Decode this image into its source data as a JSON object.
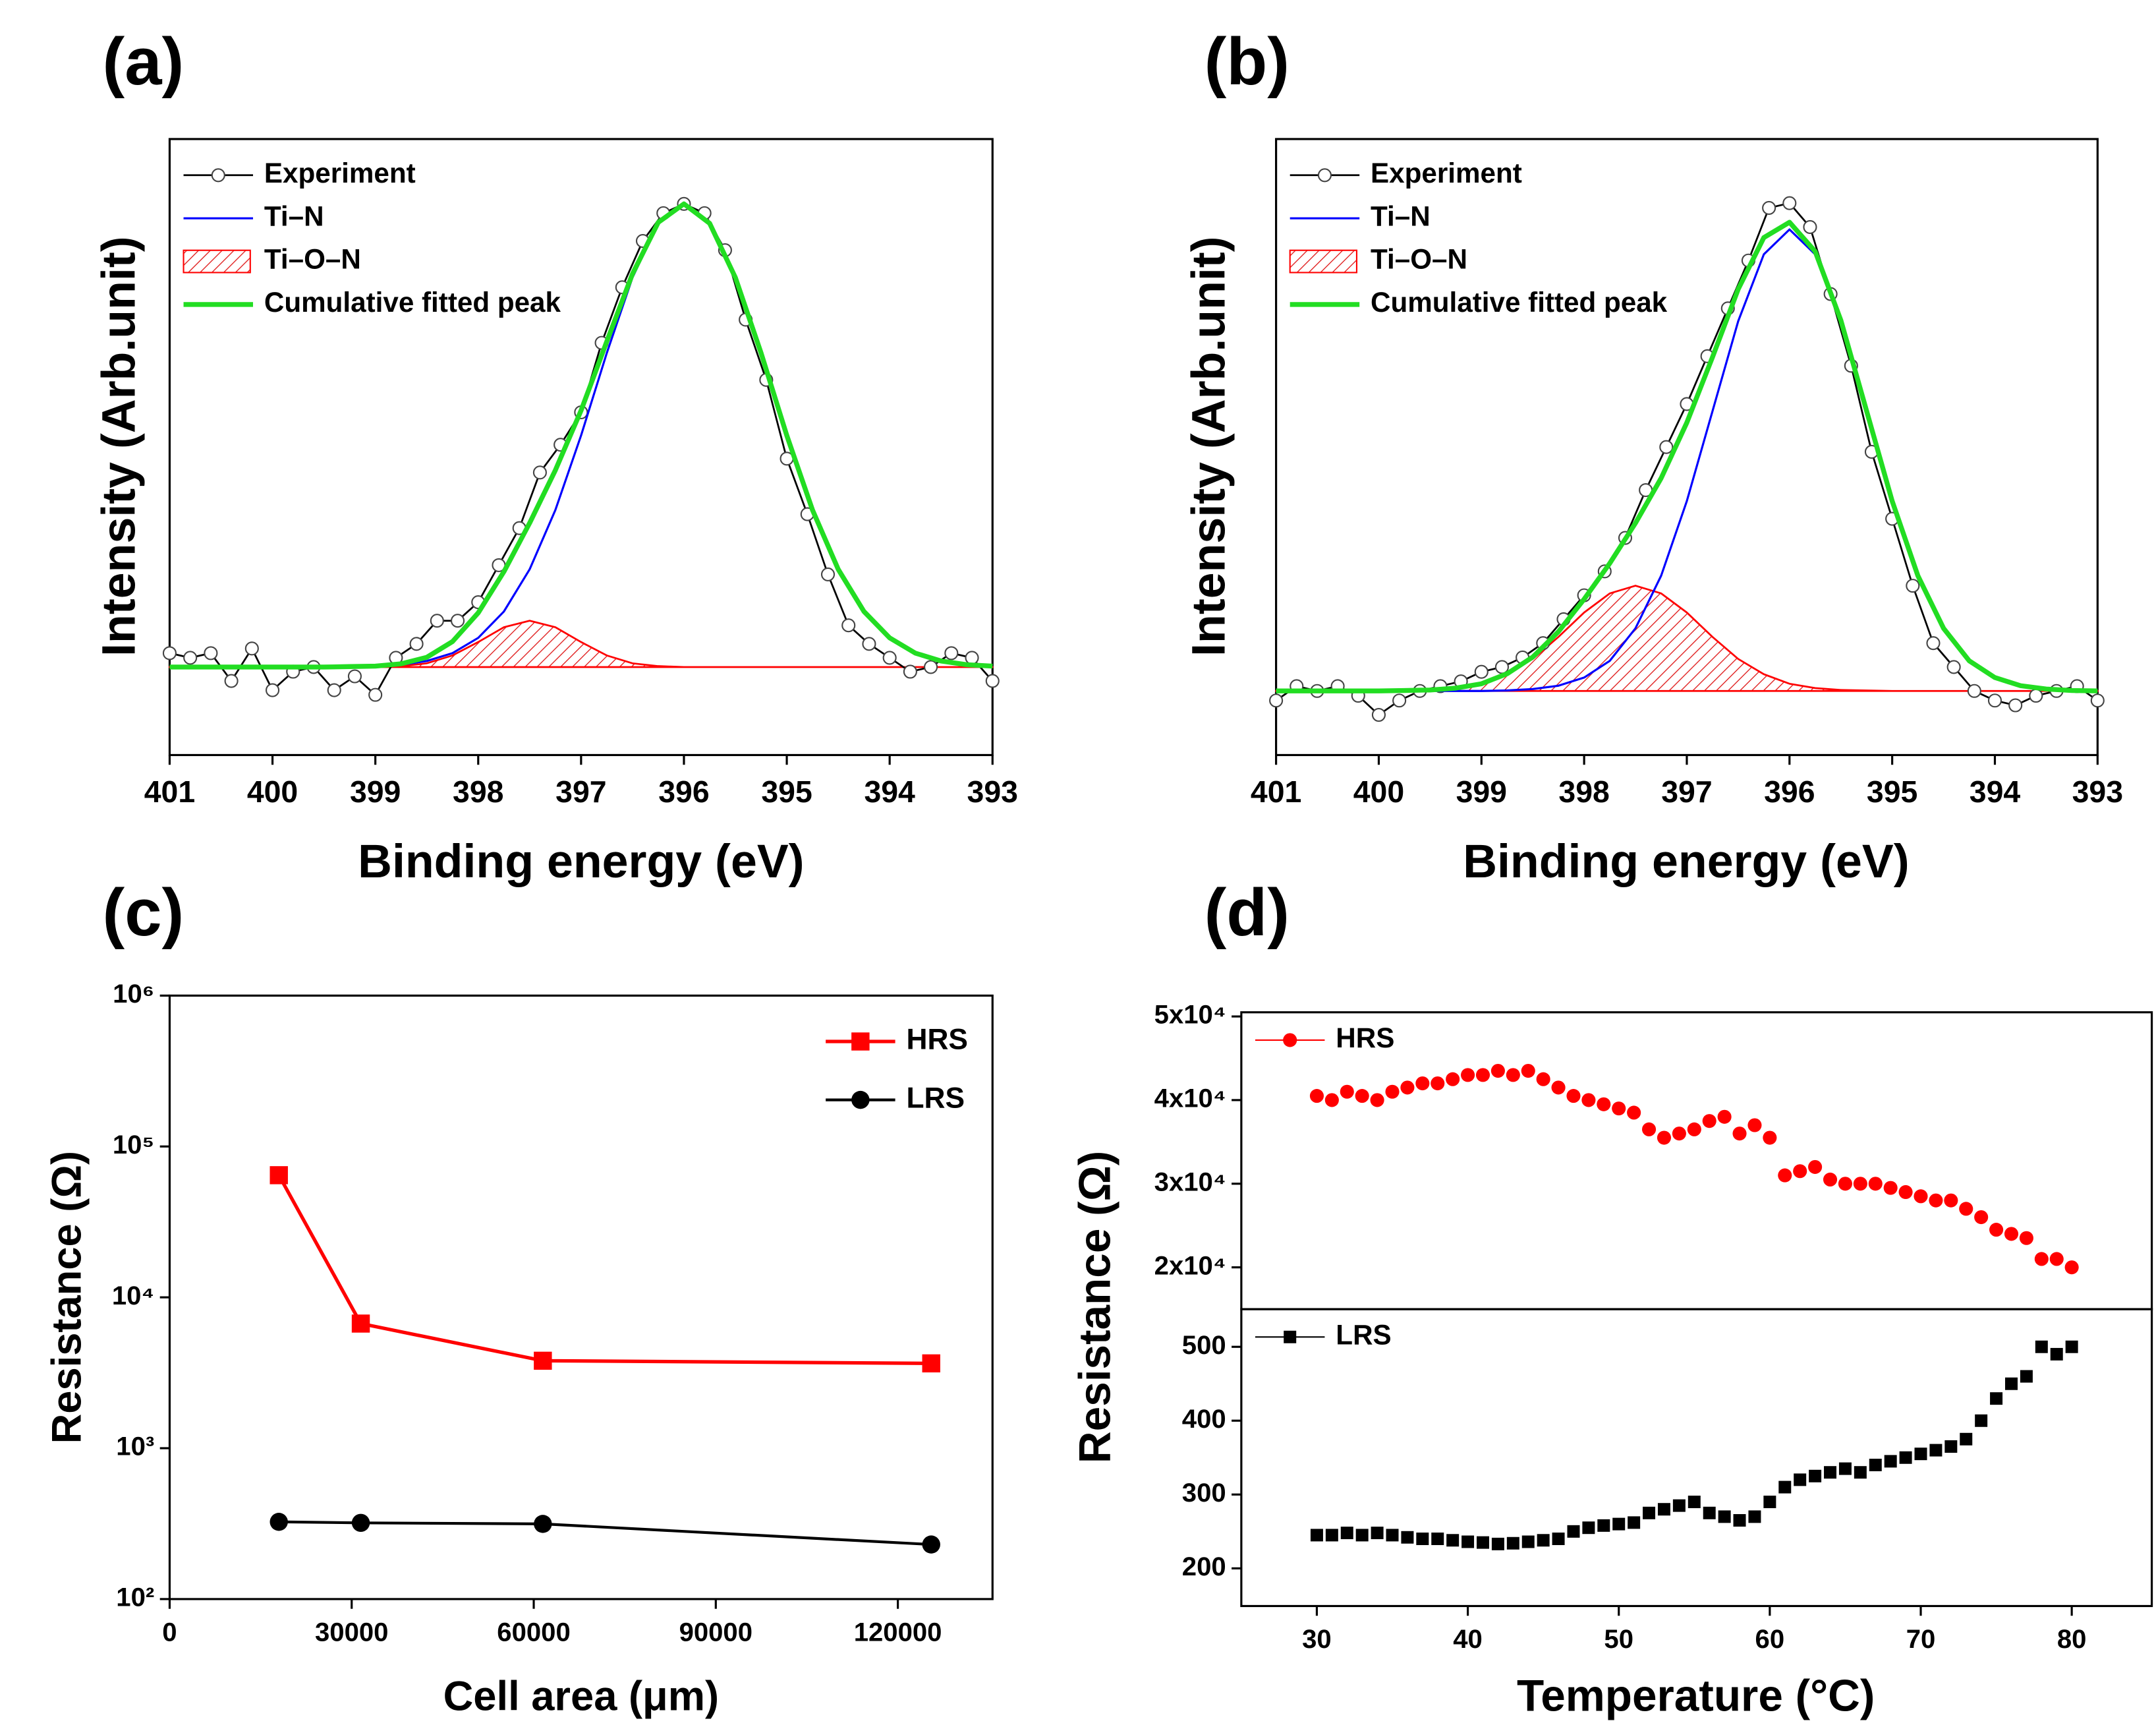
{
  "chart_data": [
    {
      "type": "line",
      "panel_label": "(a)",
      "xlabel": "Binding energy (eV)",
      "ylabel": "Intensity (Arb.unit)",
      "xlim": [
        401,
        393
      ],
      "xticks": [
        401,
        400,
        399,
        398,
        397,
        396,
        395,
        394,
        393
      ],
      "ylim": [
        -0.19,
        1.14
      ],
      "legend": "upper left",
      "x": [
        401,
        400.75,
        400.5,
        400.25,
        400,
        399.75,
        399.5,
        399.25,
        399,
        398.75,
        398.5,
        398.25,
        398,
        397.75,
        397.5,
        397.25,
        397,
        396.75,
        396.5,
        396.25,
        396,
        395.75,
        395.5,
        395.25,
        395,
        394.75,
        394.5,
        394.25,
        394,
        393.75,
        393.5,
        393.25,
        393
      ],
      "series": [
        {
          "name": "Experiment",
          "color": "#000000",
          "width": 1.3,
          "marker": "open-circle",
          "marker_size": 4.5,
          "x": [
            401,
            400.8,
            400.6,
            400.4,
            400.2,
            400,
            399.8,
            399.6,
            399.4,
            399.2,
            399,
            398.8,
            398.6,
            398.4,
            398.2,
            398,
            397.8,
            397.6,
            397.4,
            397.2,
            397,
            396.8,
            396.6,
            396.4,
            396.2,
            396,
            395.8,
            395.6,
            395.4,
            395.2,
            395,
            394.8,
            394.6,
            394.4,
            394.2,
            394,
            393.8,
            393.6,
            393.4,
            393.2,
            393
          ],
          "values": [
            0.03,
            0.02,
            0.03,
            -0.03,
            0.04,
            -0.05,
            -0.01,
            0,
            -0.05,
            -0.02,
            -0.06,
            0.02,
            0.05,
            0.1,
            0.1,
            0.14,
            0.22,
            0.3,
            0.42,
            0.48,
            0.55,
            0.7,
            0.82,
            0.92,
            0.98,
            1,
            0.98,
            0.9,
            0.75,
            0.62,
            0.45,
            0.33,
            0.2,
            0.09,
            0.05,
            0.02,
            -0.01,
            0,
            0.03,
            0.02,
            -0.03
          ]
        },
        {
          "name": "Ti–N",
          "color": "#0000ff",
          "width": 1.5,
          "values": [
            0,
            0,
            0,
            0,
            0,
            0,
            0,
            0.001,
            0.002,
            0.005,
            0.013,
            0.03,
            0.063,
            0.12,
            0.211,
            0.339,
            0.5,
            0.678,
            0.841,
            0.958,
            1,
            0.958,
            0.841,
            0.678,
            0.5,
            0.339,
            0.211,
            0.12,
            0.063,
            0.03,
            0.013,
            0.005,
            0.002
          ]
        },
        {
          "name": "Ti–O–N",
          "color": "#ff0000",
          "width": 1.3,
          "fill": "hatch",
          "values": [
            0,
            0,
            0,
            0,
            0,
            0,
            0,
            0,
            0,
            0.002,
            0.008,
            0.025,
            0.054,
            0.086,
            0.1,
            0.086,
            0.054,
            0.025,
            0.008,
            0.002,
            0,
            0,
            0,
            0,
            0,
            0,
            0,
            0,
            0,
            0,
            0,
            0,
            0
          ]
        },
        {
          "name": "Cumulative fitted peak",
          "color": "#22dd22",
          "width": 3.5,
          "values": [
            0,
            0,
            0,
            0,
            0,
            0,
            0,
            0.001,
            0.002,
            0.007,
            0.021,
            0.055,
            0.117,
            0.206,
            0.311,
            0.425,
            0.554,
            0.703,
            0.849,
            0.96,
            1,
            0.958,
            0.841,
            0.678,
            0.5,
            0.339,
            0.211,
            0.12,
            0.063,
            0.03,
            0.013,
            0.005,
            0.002
          ]
        }
      ]
    },
    {
      "type": "line",
      "panel_label": "(b)",
      "xlabel": "Binding energy (eV)",
      "ylabel": "Intensity (Arb.unit)",
      "xlim": [
        401,
        393
      ],
      "xticks": [
        401,
        400,
        399,
        398,
        397,
        396,
        395,
        394,
        393
      ],
      "ylim": [
        -0.134,
        1.154
      ],
      "legend": "upper left",
      "x": [
        401,
        400.75,
        400.5,
        400.25,
        400,
        399.75,
        399.5,
        399.25,
        399,
        398.75,
        398.5,
        398.25,
        398,
        397.75,
        397.5,
        397.25,
        397,
        396.75,
        396.5,
        396.25,
        396,
        395.75,
        395.5,
        395.25,
        395,
        394.75,
        394.5,
        394.25,
        394,
        393.75,
        393.5,
        393.25,
        393
      ],
      "series": [
        {
          "name": "Experiment",
          "color": "#000000",
          "width": 1.3,
          "marker": "open-circle",
          "marker_size": 4.5,
          "x": [
            401,
            400.8,
            400.6,
            400.4,
            400.2,
            400,
            399.8,
            399.6,
            399.4,
            399.2,
            399,
            398.8,
            398.6,
            398.4,
            398.2,
            398,
            397.8,
            397.6,
            397.4,
            397.2,
            397,
            396.8,
            396.6,
            396.4,
            396.2,
            396,
            395.8,
            395.6,
            395.4,
            395.2,
            395,
            394.8,
            394.6,
            394.4,
            394.2,
            394,
            393.8,
            393.6,
            393.4,
            393.2,
            393
          ],
          "values": [
            -0.02,
            0.01,
            0,
            0.01,
            -0.01,
            -0.05,
            -0.02,
            0,
            0.01,
            0.02,
            0.04,
            0.05,
            0.07,
            0.1,
            0.15,
            0.2,
            0.25,
            0.32,
            0.42,
            0.51,
            0.6,
            0.7,
            0.8,
            0.9,
            1.01,
            1.02,
            0.97,
            0.83,
            0.68,
            0.5,
            0.36,
            0.22,
            0.1,
            0.05,
            0,
            -0.02,
            -0.03,
            -0.01,
            0,
            0.01,
            -0.02
          ]
        },
        {
          "name": "Ti–N",
          "color": "#0000ff",
          "width": 1.5,
          "values": [
            0,
            0,
            0,
            0,
            0,
            0,
            0,
            0,
            0,
            0.001,
            0.004,
            0.011,
            0.028,
            0.063,
            0.131,
            0.241,
            0.397,
            0.585,
            0.773,
            0.913,
            0.965,
            0.913,
            0.773,
            0.585,
            0.397,
            0.241,
            0.131,
            0.063,
            0.028,
            0.011,
            0.004,
            0.001,
            0
          ]
        },
        {
          "name": "Ti–O–N",
          "color": "#ff0000",
          "width": 1.3,
          "fill": "hatch",
          "values": [
            0,
            0,
            0,
            0,
            0,
            0.001,
            0.002,
            0.006,
            0.015,
            0.035,
            0.067,
            0.113,
            0.164,
            0.204,
            0.22,
            0.204,
            0.164,
            0.113,
            0.067,
            0.035,
            0.015,
            0.006,
            0.002,
            0.001,
            0,
            0,
            0,
            0,
            0,
            0,
            0,
            0,
            0
          ]
        },
        {
          "name": "Cumulative fitted peak",
          "color": "#22dd22",
          "width": 3.5,
          "values": [
            0,
            0,
            0,
            0,
            0,
            0.001,
            0.002,
            0.006,
            0.015,
            0.036,
            0.071,
            0.124,
            0.192,
            0.267,
            0.351,
            0.445,
            0.561,
            0.698,
            0.84,
            0.948,
            0.98,
            0.919,
            0.775,
            0.586,
            0.397,
            0.241,
            0.131,
            0.063,
            0.028,
            0.011,
            0.004,
            0.001,
            0
          ]
        }
      ]
    },
    {
      "type": "line",
      "panel_label": "(c)",
      "xlabel": "Cell area (μm)",
      "ylabel": "Resistance (Ω)",
      "xlim": [
        0,
        135600
      ],
      "xticks": [
        0,
        30000,
        60000,
        90000,
        120000
      ],
      "ylog": true,
      "ylim": [
        100,
        1000000
      ],
      "yticks": [
        {
          "value": 100,
          "label": "10²"
        },
        {
          "value": 1000,
          "label": "10³"
        },
        {
          "value": 10000,
          "label": "10⁴"
        },
        {
          "value": 100000,
          "label": "10⁵"
        },
        {
          "value": 1000000,
          "label": "10⁶"
        }
      ],
      "legend": "upper right",
      "x": [
        18000,
        31500,
        61500,
        125500
      ],
      "series": [
        {
          "name": "HRS",
          "color": "#ff0000",
          "width": 2.5,
          "marker": "square",
          "marker_size": 6.5,
          "values": [
            64500,
            6700,
            3800,
            3650
          ]
        },
        {
          "name": "LRS",
          "color": "#000000",
          "width": 2,
          "marker": "circle",
          "marker_size": 6.5,
          "values": [
            325,
            320,
            315,
            230
          ]
        }
      ]
    },
    {
      "type": "scatter",
      "panel_label": "(d)",
      "xlabel": "Temperature (°C)",
      "ylabel": "Resistance (Ω)",
      "xlim": [
        25,
        85.3
      ],
      "xticks": [
        30,
        40,
        50,
        60,
        70,
        80
      ],
      "x": [
        30,
        31,
        32,
        33,
        34,
        35,
        36,
        37,
        38,
        39,
        40,
        41,
        42,
        43,
        44,
        45,
        46,
        47,
        48,
        49,
        50,
        51,
        52,
        53,
        54,
        55,
        56,
        57,
        58,
        59,
        60,
        61,
        62,
        63,
        64,
        65,
        66,
        67,
        68,
        69,
        70,
        71,
        72,
        73,
        74,
        75,
        76,
        77,
        78,
        79,
        80
      ],
      "panels": [
        {
          "ylim": [
            15000,
            50500
          ],
          "legend": "upper left",
          "yticks": [
            {
              "value": 20000,
              "label": "2x10⁴"
            },
            {
              "value": 30000,
              "label": "3x10⁴"
            },
            {
              "value": 40000,
              "label": "4x10⁴"
            },
            {
              "value": 50000,
              "label": "5x10⁴"
            }
          ],
          "series": [
            {
              "name": "HRS",
              "color": "#ff0000",
              "width": 1,
              "line": false,
              "marker": "circle",
              "marker_size": 5,
              "values": [
                40500,
                40000,
                41000,
                40500,
                40000,
                41000,
                41500,
                42000,
                42000,
                42500,
                43000,
                43000,
                43500,
                43000,
                43500,
                42500,
                41500,
                40500,
                40000,
                39500,
                39000,
                38500,
                36500,
                35500,
                36000,
                36500,
                37500,
                38000,
                36000,
                37000,
                35500,
                31000,
                31500,
                32000,
                30500,
                30000,
                30000,
                30000,
                29500,
                29000,
                28500,
                28000,
                28000,
                27000,
                26000,
                24500,
                24000,
                23500,
                21000,
                21000,
                20000
              ]
            }
          ]
        },
        {
          "ylim": [
            149,
            551
          ],
          "legend": "upper left",
          "yticks": [
            200,
            300,
            400,
            500
          ],
          "series": [
            {
              "name": "LRS",
              "color": "#000000",
              "width": 1,
              "line": false,
              "marker": "square",
              "marker_size": 4.5,
              "values": [
                245,
                245,
                248,
                245,
                248,
                245,
                242,
                240,
                240,
                238,
                236,
                235,
                233,
                234,
                236,
                238,
                240,
                250,
                255,
                258,
                260,
                262,
                275,
                280,
                285,
                290,
                275,
                270,
                265,
                270,
                290,
                310,
                320,
                325,
                330,
                335,
                330,
                340,
                345,
                350,
                355,
                360,
                365,
                375,
                400,
                430,
                450,
                460,
                500,
                490,
                500
              ]
            }
          ]
        }
      ]
    }
  ]
}
